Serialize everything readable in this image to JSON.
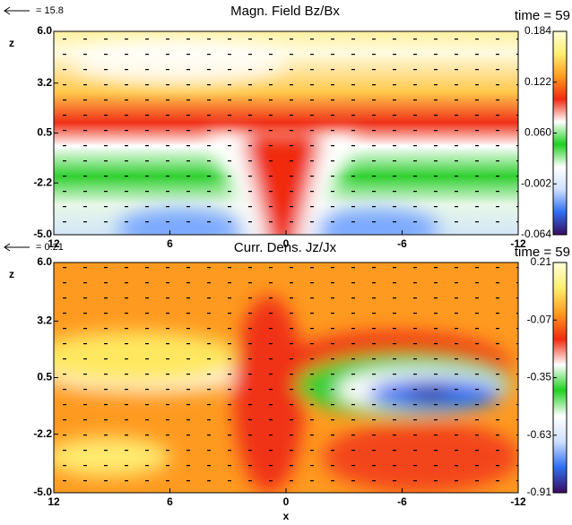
{
  "chart_data": [
    {
      "type": "heatmap",
      "title": "Magn. Field Bz/Bx",
      "vector_scale_label": "= 15.8",
      "time_label": "time =  59",
      "ylabel": "z",
      "xlim": [
        12,
        -12
      ],
      "ylim": [
        -5,
        6
      ],
      "xticks": [
        12,
        6,
        0,
        -6,
        -12
      ],
      "yticks": [
        {
          "value": 6,
          "label": "6.0"
        },
        3.2,
        0.5,
        -2.2,
        {
          "value": -5,
          "label": "-5.0"
        }
      ],
      "clim": [
        -0.064,
        0.184
      ],
      "cticks": [
        0.184,
        0.122,
        {
          "value": 0.06,
          "label": "0.060"
        },
        -0.002,
        -0.064
      ],
      "colorbar_colors": [
        "#3a0a60",
        "#2e6ff0",
        "#cfe0ff",
        "#ffffff",
        "#20d020",
        "#ffffff",
        "#f02a10",
        "#ff9a20",
        "#ffee70",
        "#ffffd8"
      ]
    },
    {
      "type": "heatmap",
      "title": "Curr. Dens. Jz/Jx",
      "vector_scale_label": "= 0.21",
      "time_label": "time =  59",
      "xlabel": "x",
      "ylabel": "z",
      "xlim": [
        12,
        -12
      ],
      "ylim": [
        -5,
        6
      ],
      "xticks": [
        12,
        6,
        0,
        -6,
        -12
      ],
      "yticks": [
        {
          "value": 6,
          "label": "6.0"
        },
        3.2,
        0.5,
        -2.2,
        {
          "value": -5,
          "label": "-5.0"
        }
      ],
      "clim": [
        -0.91,
        0.21
      ],
      "cticks": [
        0.21,
        -0.07,
        -0.35,
        -0.63,
        -0.91
      ],
      "colorbar_colors": [
        "#3a0a60",
        "#2e6ff0",
        "#cfe0ff",
        "#ffffff",
        "#20d020",
        "#ffffff",
        "#f02a10",
        "#ff9a20",
        "#ffee70",
        "#ffffd8"
      ]
    }
  ]
}
